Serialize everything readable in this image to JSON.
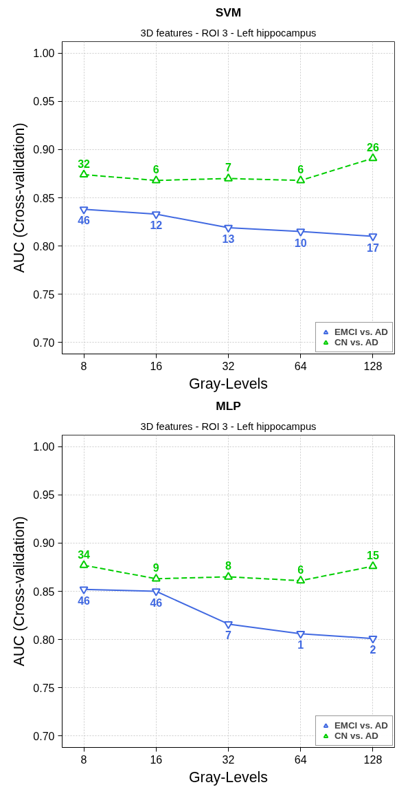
{
  "chart_data": [
    {
      "type": "line",
      "title": "SVM",
      "subtitle": "3D features - ROI 3 - Left hippocampus",
      "xlabel": "Gray-Levels",
      "ylabel": "AUC (Cross-validation)",
      "categories": [
        "8",
        "16",
        "32",
        "64",
        "128"
      ],
      "ylim": [
        0.688,
        1.012
      ],
      "yticks": [
        {
          "value": 0.7,
          "label": "0.70"
        },
        {
          "value": 0.75,
          "label": "0.75"
        },
        {
          "value": 0.8,
          "label": "0.80"
        },
        {
          "value": 0.85,
          "label": "0.85"
        },
        {
          "value": 0.9,
          "label": "0.90"
        },
        {
          "value": 0.95,
          "label": "0.95"
        },
        {
          "value": 1.0,
          "label": "1.00"
        }
      ],
      "grid": true,
      "legend": "bottom right",
      "series": [
        {
          "name": "EMCI vs. AD",
          "color": "#4169e1",
          "marker": "triangle",
          "line_style": "solid",
          "values": [
            0.838,
            0.833,
            0.819,
            0.815,
            0.81
          ]
        },
        {
          "name": "CN vs. AD",
          "color": "#00cd00",
          "marker": "triangle",
          "line_style": "dashed",
          "values": [
            0.874,
            0.868,
            0.87,
            0.868,
            0.891
          ]
        }
      ],
      "annotations": [
        {
          "text": "46",
          "x": "8",
          "y": 0.838
        },
        {
          "text": "12",
          "x": "16",
          "y": 0.833
        },
        {
          "text": "13",
          "x": "32",
          "y": 0.819
        },
        {
          "text": "10",
          "x": "64",
          "y": 0.815
        },
        {
          "text": "17",
          "x": "128",
          "y": 0.81
        },
        {
          "text": "32",
          "x": "8",
          "y": 0.874
        },
        {
          "text": "6",
          "x": "16",
          "y": 0.868
        },
        {
          "text": "7",
          "x": "32",
          "y": 0.87
        },
        {
          "text": "6",
          "x": "64",
          "y": 0.868
        },
        {
          "text": "26",
          "x": "128",
          "y": 0.891
        }
      ]
    },
    {
      "type": "line",
      "title": "MLP",
      "subtitle": "3D features - ROI 3 - Left hippocampus",
      "xlabel": "Gray-Levels",
      "ylabel": "AUC (Cross-validation)",
      "categories": [
        "8",
        "16",
        "32",
        "64",
        "128"
      ],
      "ylim": [
        0.688,
        1.012
      ],
      "yticks": [
        {
          "value": 0.7,
          "label": "0.70"
        },
        {
          "value": 0.75,
          "label": "0.75"
        },
        {
          "value": 0.8,
          "label": "0.80"
        },
        {
          "value": 0.85,
          "label": "0.85"
        },
        {
          "value": 0.9,
          "label": "0.90"
        },
        {
          "value": 0.95,
          "label": "0.95"
        },
        {
          "value": 1.0,
          "label": "1.00"
        }
      ],
      "grid": true,
      "legend": "bottom right",
      "series": [
        {
          "name": "EMCI vs. AD",
          "color": "#4169e1",
          "marker": "triangle",
          "line_style": "solid",
          "values": [
            0.852,
            0.85,
            0.816,
            0.806,
            0.801
          ]
        },
        {
          "name": "CN vs. AD",
          "color": "#00cd00",
          "marker": "triangle",
          "line_style": "dashed",
          "values": [
            0.877,
            0.863,
            0.865,
            0.861,
            0.876
          ]
        }
      ],
      "annotations": [
        {
          "text": "46",
          "x": "8",
          "y": 0.852
        },
        {
          "text": "46",
          "x": "16",
          "y": 0.85
        },
        {
          "text": "7",
          "x": "32",
          "y": 0.816
        },
        {
          "text": "1",
          "x": "64",
          "y": 0.806
        },
        {
          "text": "2",
          "x": "128",
          "y": 0.801
        },
        {
          "text": "34",
          "x": "8",
          "y": 0.877
        },
        {
          "text": "9",
          "x": "16",
          "y": 0.863
        },
        {
          "text": "8",
          "x": "32",
          "y": 0.865
        },
        {
          "text": "6",
          "x": "64",
          "y": 0.861
        },
        {
          "text": "15",
          "x": "128",
          "y": 0.876
        }
      ]
    }
  ]
}
